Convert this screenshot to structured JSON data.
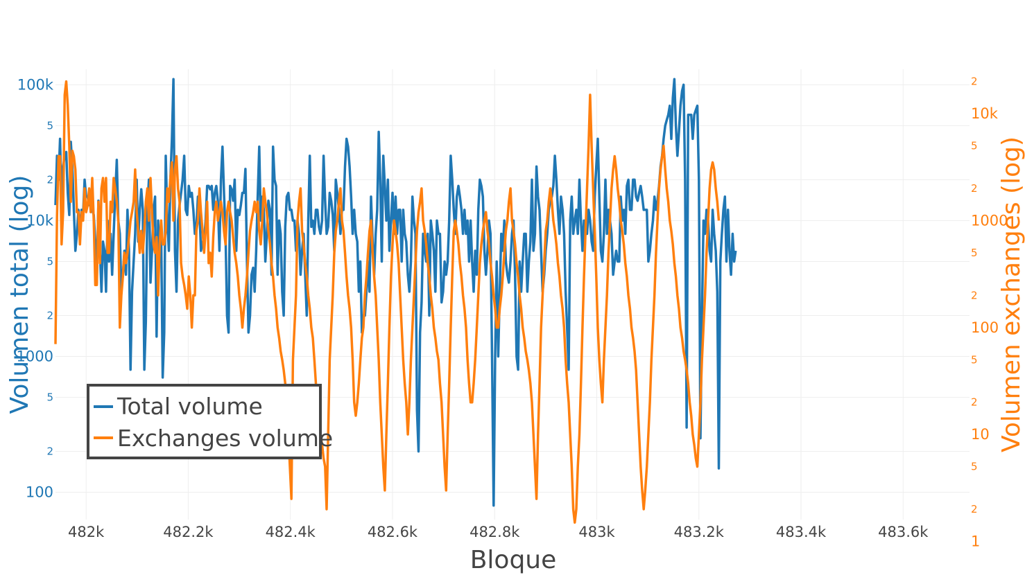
{
  "chart_data": {
    "type": "line",
    "title": "",
    "xlabel": "Bloque",
    "ylabel_left": "Volumen total (log)",
    "ylabel_right": "Volumen exchanges (log)",
    "x_start": 481940,
    "x_step": 3,
    "xlim": [
      481940,
      483730
    ],
    "x_ticks": [
      482000,
      482200,
      482400,
      482600,
      482800,
      483000,
      483200,
      483400,
      483600
    ],
    "x_tick_labels": [
      "482k",
      "482.2k",
      "482.4k",
      "482.6k",
      "482.8k",
      "483k",
      "483.2k",
      "483.4k",
      "483.6k"
    ],
    "y_left": {
      "scale": "log",
      "range": [
        63,
        130000
      ],
      "major_ticks": [
        100,
        1000,
        10000,
        100000
      ],
      "major_labels": [
        "100",
        "1000",
        "10k",
        "100k"
      ],
      "minor_ticks": [
        200,
        500,
        2000,
        5000,
        20000,
        50000
      ],
      "minor_labels": [
        "2",
        "5",
        "2",
        "5",
        "2",
        "5"
      ]
    },
    "y_right": {
      "scale": "log",
      "range": [
        1.6,
        26000
      ],
      "major_ticks": [
        10,
        100,
        1000,
        10000
      ],
      "major_labels": [
        "1",
        "10",
        "100",
        "1000",
        "10k"
      ],
      "major_ticks_all": [
        1,
        10,
        100,
        1000,
        10000
      ],
      "minor_ticks": [
        2,
        5,
        20,
        50,
        200,
        500,
        2000,
        5000,
        20000
      ],
      "minor_labels": [
        "2",
        "5",
        "2",
        "5",
        "2",
        "5",
        "2",
        "5",
        "2"
      ]
    },
    "grid": true,
    "legend": {
      "position": "bottom-left",
      "entries": [
        "Total volume",
        "Exchanges volume"
      ]
    },
    "series": [
      {
        "name": "Total volume",
        "axis": "left",
        "color": "#1f77b4",
        "values": [
          13000,
          30000,
          20000,
          40000,
          14000,
          25000,
          30000,
          32000,
          16000,
          11000,
          38000,
          25000,
          12000,
          6000,
          8000,
          12000,
          8000,
          12000,
          11000,
          20000,
          15000,
          15000,
          13000,
          16000,
          12000,
          11000,
          7000,
          3500,
          14000,
          6000,
          3000,
          7000,
          6000,
          3000,
          10000,
          5000,
          8000,
          4000,
          8000,
          15000,
          28000,
          10000,
          8000,
          3000,
          4000,
          6000,
          4000,
          12000,
          6000,
          800,
          3000,
          5000,
          8000,
          20000,
          7000,
          12000,
          17000,
          12000,
          800,
          1800,
          12000,
          20000,
          3500,
          6000,
          12000,
          15000,
          1400,
          10000,
          5000,
          8000,
          700,
          1500,
          30000,
          10000,
          6000,
          20000,
          40000,
          110000,
          6000,
          3000,
          10000,
          13000,
          16000,
          20000,
          30000,
          12000,
          11000,
          18000,
          15000,
          16000,
          12000,
          8000,
          9000,
          15000,
          12000,
          6000,
          7000,
          7000,
          10000,
          18000,
          18000,
          17000,
          18000,
          12000,
          16000,
          18000,
          14000,
          6000,
          20000,
          35000,
          16000,
          8000,
          2000,
          1500,
          18000,
          17000,
          14000,
          20000,
          6000,
          12000,
          11000,
          13000,
          16000,
          16000,
          24000,
          5000,
          1500,
          2000,
          4000,
          4500,
          3000,
          6000,
          15000,
          35000,
          10000,
          15000,
          12000,
          5000,
          8000,
          14000,
          12000,
          4000,
          35000,
          20000,
          18000,
          4000,
          10000,
          8000,
          3000,
          2000,
          9000,
          15000,
          16000,
          12000,
          12000,
          10000,
          10000,
          6000,
          10000,
          8000,
          4000,
          6000,
          8000,
          4000,
          2000,
          10000,
          30000,
          9000,
          10000,
          8000,
          12000,
          12000,
          9000,
          8000,
          10000,
          30000,
          14000,
          8000,
          9000,
          16000,
          14000,
          11000,
          6000,
          20000,
          16000,
          12000,
          8000,
          12000,
          12000,
          25000,
          40000,
          35000,
          25000,
          15000,
          8000,
          12000,
          8000,
          7000,
          3000,
          5000,
          1500,
          2000,
          2000,
          3000,
          5000,
          3000,
          15000,
          7000,
          4000,
          8000,
          12000,
          45000,
          20000,
          5000,
          30000,
          18000,
          10000,
          20000,
          6000,
          10000,
          16000,
          8000,
          15000,
          8000,
          12000,
          12000,
          5000,
          12000,
          8000,
          7000,
          4000,
          3000,
          5000,
          15000,
          10000,
          8000,
          400,
          200,
          1500,
          2500,
          8000,
          6000,
          5000,
          8000,
          2000,
          10000,
          8000,
          6000,
          3000,
          10000,
          8000,
          8000,
          2500,
          3000,
          5000,
          4000,
          5000,
          10000,
          30000,
          20000,
          12000,
          8000,
          15000,
          18000,
          15000,
          12000,
          8000,
          12000,
          8000,
          10000,
          5000,
          10000,
          5000,
          3000,
          6000,
          4000,
          12000,
          20000,
          18000,
          15000,
          6000,
          4000,
          6000,
          10000,
          8000,
          1000,
          80,
          1000,
          5000,
          1000,
          3000,
          8000,
          6000,
          10000,
          5000,
          4000,
          3500,
          5000,
          8000,
          10000,
          4000,
          1000,
          800,
          5000,
          3000,
          5000,
          8000,
          8000,
          3000,
          5000,
          7000,
          20000,
          6000,
          8000,
          25000,
          15000,
          12000,
          6000,
          3000,
          4000,
          6000,
          8000,
          12000,
          14000,
          15000,
          18000,
          30000,
          20000,
          12000,
          8000,
          15000,
          12000,
          8000,
          3000,
          1600,
          800,
          10000,
          15000,
          8000,
          10000,
          12000,
          8000,
          20000,
          10000,
          6000,
          10000,
          8000,
          8000,
          12000,
          10000,
          7000,
          6000,
          15000,
          25000,
          40000,
          15000,
          6000,
          5000,
          8000,
          20000,
          8000,
          12000,
          10000,
          8000,
          4000,
          5000,
          6000,
          5000,
          5000,
          15000,
          10000,
          12000,
          8000,
          18000,
          20000,
          12000,
          12000,
          20000,
          20000,
          15000,
          14000,
          16000,
          18000,
          15000,
          12000,
          12000,
          12000,
          5000,
          6000,
          8000,
          10000,
          15000,
          12000,
          14000,
          18000,
          25000,
          30000,
          40000,
          50000,
          55000,
          60000,
          70000,
          40000,
          80000,
          110000,
          50000,
          30000,
          45000,
          70000,
          90000,
          100000,
          20000,
          300,
          60000,
          60000,
          60000,
          40000,
          60000,
          65000,
          70000,
          20000,
          250,
          2000,
          10000,
          8000,
          12000,
          10000,
          6000,
          5000,
          12000,
          8000,
          6000,
          3000,
          150,
          5000,
          8000,
          12000,
          15000,
          5000,
          12000,
          6000,
          4000,
          8000,
          5000,
          6000
        ]
      },
      {
        "name": "Exchanges volume",
        "axis": "right",
        "color": "#ff7f0e",
        "values": [
          70,
          1100,
          4000,
          4000,
          600,
          1200,
          15000,
          20000,
          12000,
          5000,
          1500,
          4500,
          4000,
          3000,
          1200,
          1200,
          600,
          1200,
          1000,
          2000,
          1200,
          1400,
          2000,
          1200,
          2500,
          1000,
          250,
          250,
          1500,
          400,
          2000,
          2500,
          1500,
          2500,
          500,
          500,
          1500,
          1200,
          2500,
          2000,
          1500,
          1000,
          100,
          200,
          300,
          500,
          400,
          500,
          700,
          1000,
          1200,
          1500,
          3000,
          1200,
          800,
          500,
          800,
          500,
          800,
          1500,
          2000,
          1000,
          2500,
          1200,
          600,
          500,
          700,
          200,
          600,
          1000,
          600,
          600,
          800,
          2000,
          1500,
          2500,
          3500,
          1000,
          3000,
          4000,
          2000,
          1500,
          400,
          300,
          250,
          200,
          150,
          300,
          200,
          100,
          200,
          200,
          800,
          1000,
          2000,
          1200,
          800,
          500,
          800,
          1500,
          400,
          500,
          300,
          700,
          1200,
          1500,
          1000,
          1200,
          1500,
          1200,
          800,
          600,
          1200,
          1500,
          1200,
          1000,
          700,
          500,
          400,
          300,
          200,
          150,
          100,
          150,
          200,
          300,
          500,
          800,
          1000,
          1200,
          1500,
          1200,
          1500,
          800,
          600,
          1000,
          2000,
          1500,
          1200,
          800,
          600,
          400,
          300,
          200,
          150,
          100,
          80,
          60,
          50,
          40,
          30,
          20,
          10,
          5,
          2.5,
          50,
          100,
          200,
          1000,
          1500,
          2000,
          800,
          600,
          400,
          300,
          200,
          150,
          100,
          80,
          50,
          30,
          20,
          12,
          10,
          8,
          6,
          5,
          2,
          10,
          50,
          100,
          200,
          500,
          800,
          1000,
          1500,
          2000,
          1000,
          800,
          500,
          300,
          200,
          150,
          100,
          50,
          20,
          15,
          20,
          30,
          50,
          80,
          100,
          200,
          300,
          500,
          800,
          1000,
          500,
          300,
          200,
          100,
          50,
          20,
          10,
          5,
          3,
          10,
          30,
          100,
          300,
          600,
          1000,
          800,
          600,
          400,
          200,
          100,
          50,
          30,
          20,
          10,
          20,
          50,
          100,
          200,
          400,
          800,
          1200,
          1500,
          2000,
          1000,
          800,
          600,
          400,
          300,
          200,
          150,
          100,
          80,
          60,
          50,
          30,
          20,
          10,
          5,
          3,
          10,
          30,
          100,
          300,
          800,
          1000,
          800,
          600,
          400,
          300,
          200,
          150,
          100,
          50,
          30,
          20,
          20,
          30,
          50,
          100,
          200,
          400,
          600,
          800,
          1000,
          1200,
          800,
          600,
          400,
          300,
          200,
          150,
          100,
          100,
          150,
          200,
          300,
          500,
          800,
          1000,
          1500,
          2000,
          1000,
          800,
          600,
          400,
          300,
          200,
          150,
          100,
          80,
          60,
          50,
          40,
          30,
          20,
          10,
          5,
          2.5,
          10,
          30,
          100,
          200,
          400,
          800,
          1000,
          1500,
          2000,
          1500,
          1000,
          800,
          600,
          400,
          300,
          200,
          150,
          100,
          50,
          30,
          20,
          10,
          5,
          2,
          1.5,
          2,
          5,
          10,
          30,
          100,
          300,
          800,
          2000,
          5000,
          15000,
          5000,
          2000,
          800,
          300,
          100,
          50,
          30,
          20,
          50,
          100,
          200,
          500,
          1000,
          2000,
          3000,
          4000,
          3000,
          2000,
          1500,
          1000,
          800,
          600,
          400,
          300,
          200,
          150,
          100,
          80,
          60,
          40,
          20,
          10,
          5,
          3,
          2,
          3,
          5,
          10,
          20,
          50,
          100,
          200,
          500,
          1000,
          2000,
          3000,
          4000,
          5000,
          3000,
          2000,
          1500,
          1000,
          800,
          600,
          400,
          300,
          200,
          150,
          100,
          80,
          60,
          50,
          40,
          30,
          20,
          15,
          10,
          8,
          6,
          5,
          10,
          20,
          50,
          100,
          200,
          500,
          1000,
          2000,
          3000,
          3500,
          3000,
          2000,
          1500,
          1000
        ]
      }
    ]
  }
}
